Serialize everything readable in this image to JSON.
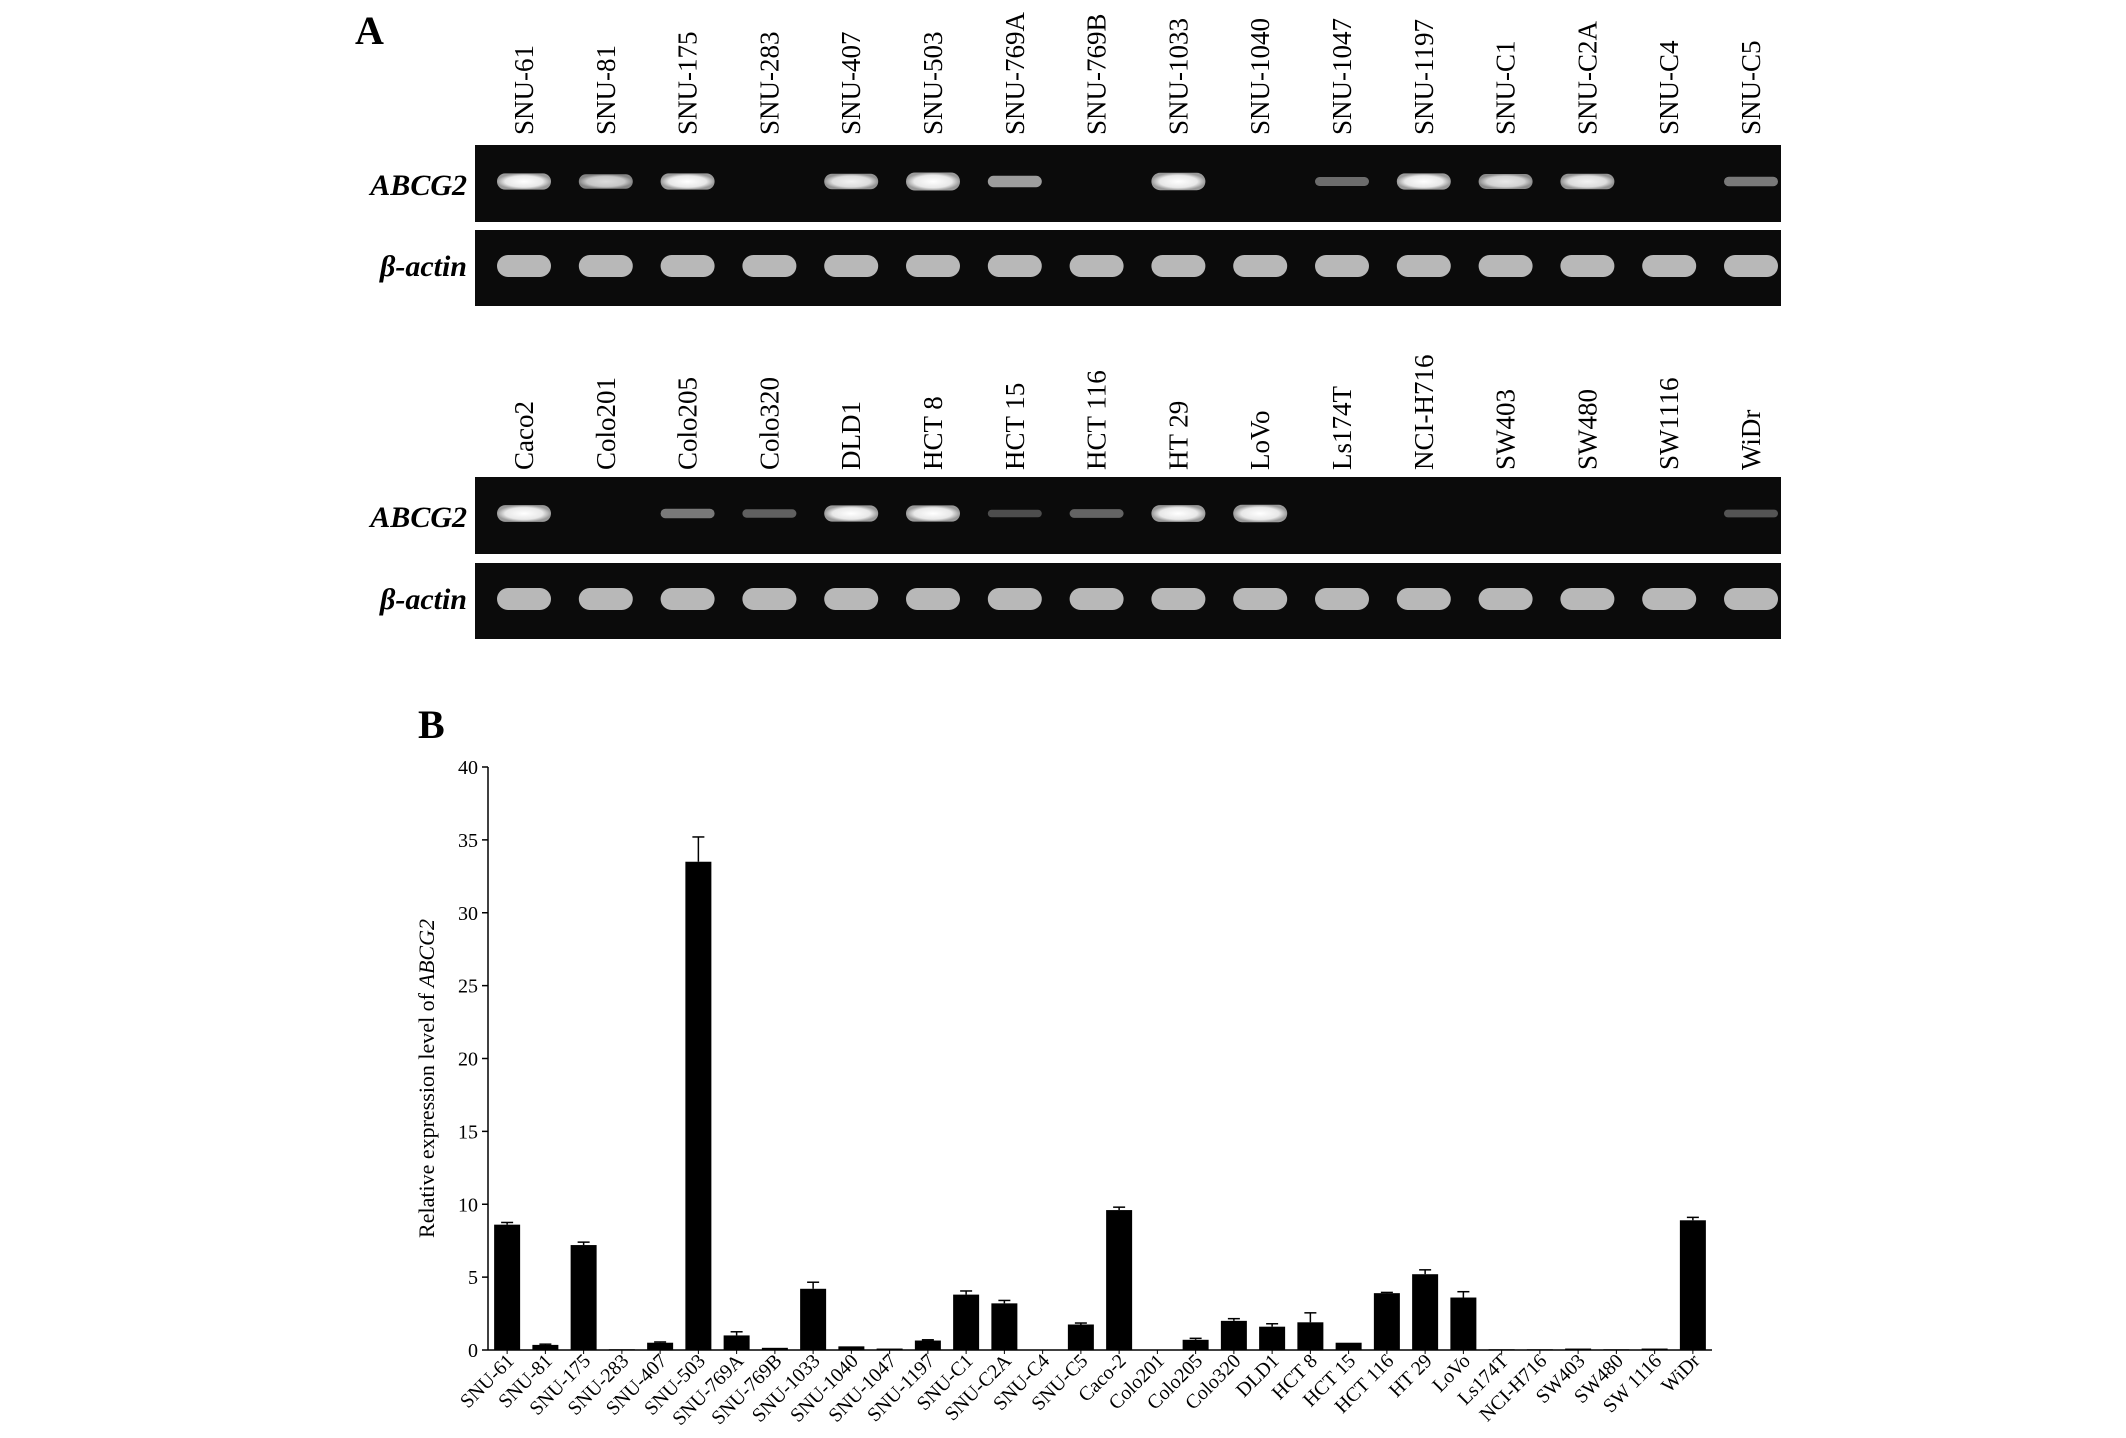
{
  "figure": {
    "panel_a": {
      "letter": "A",
      "row_labels": {
        "target": "ABCG2",
        "control": "β-actin"
      },
      "blots": [
        {
          "lanes": [
            "SNU-61",
            "SNU-81",
            "SNU-175",
            "SNU-283",
            "SNU-407",
            "SNU-503",
            "SNU-769A",
            "SNU-769B",
            "SNU-1033",
            "SNU-1040",
            "SNU-1047",
            "SNU-1197",
            "SNU-C1",
            "SNU-C2A",
            "SNU-C4",
            "SNU-C5"
          ],
          "abcg2_intensity": [
            0.85,
            0.7,
            0.85,
            0,
            0.8,
            1.0,
            0.45,
            0,
            0.95,
            0,
            0.25,
            0.85,
            0.75,
            0.8,
            0,
            0.3
          ]
        },
        {
          "lanes": [
            "Caco2",
            "Colo201",
            "Colo205",
            "Colo320",
            "DLD1",
            "HCT 8",
            "HCT 15",
            "HCT 116",
            "HT 29",
            "LoVo",
            "Ls174T",
            "NCI-H716",
            "SW403",
            "SW480",
            "SW1116",
            "WiDr"
          ],
          "abcg2_intensity": [
            0.9,
            0,
            0.3,
            0.2,
            0.85,
            0.85,
            0.12,
            0.22,
            0.9,
            0.95,
            0,
            0,
            0,
            0,
            0,
            0.15
          ]
        }
      ]
    },
    "panel_b": {
      "letter": "B"
    }
  },
  "chart_data": {
    "type": "bar",
    "title": "",
    "xlabel": "",
    "ylabel_prefix": "Relative expression  level of ",
    "ylabel_gene": "ABCG2",
    "ylim": [
      0,
      40
    ],
    "yticks": [
      0,
      5,
      10,
      15,
      20,
      25,
      30,
      35,
      40
    ],
    "grid": false,
    "categories": [
      "SNU-61",
      "SNU-81",
      "SNU-175",
      "SNU-283",
      "SNU-407",
      "SNU-503",
      "SNU-769A",
      "SNU-769B",
      "SNU-1033",
      "SNU-1040",
      "SNU-1047",
      "SNU-1197",
      "SNU-C1",
      "SNU-C2A",
      "SNU-C4",
      "SNU-C5",
      "Caco-2",
      "Colo201",
      "Colo205",
      "Colo320",
      "DLD1",
      "HCT 8",
      "HCT 15",
      "HCT 116",
      "HT 29",
      "LoVo",
      "Ls174T",
      "NCI-H716",
      "SW403",
      "SW480",
      "SW 1116",
      "WiDr"
    ],
    "values": [
      8.6,
      0.35,
      7.2,
      0.05,
      0.5,
      33.5,
      1.0,
      0.15,
      4.2,
      0.25,
      0.1,
      0.65,
      3.8,
      3.2,
      0,
      1.75,
      9.6,
      0,
      0.7,
      2.0,
      1.6,
      1.9,
      0.5,
      3.9,
      5.2,
      3.6,
      0.05,
      0.05,
      0.1,
      0.05,
      0.1,
      8.9
    ],
    "errors": [
      0.15,
      0.05,
      0.2,
      0,
      0.05,
      1.7,
      0.25,
      0,
      0.45,
      0,
      0,
      0.05,
      0.25,
      0.2,
      0,
      0.1,
      0.2,
      0,
      0.1,
      0.15,
      0.2,
      0.65,
      0,
      0.05,
      0.3,
      0.4,
      0,
      0,
      0,
      0,
      0,
      0.2
    ]
  }
}
